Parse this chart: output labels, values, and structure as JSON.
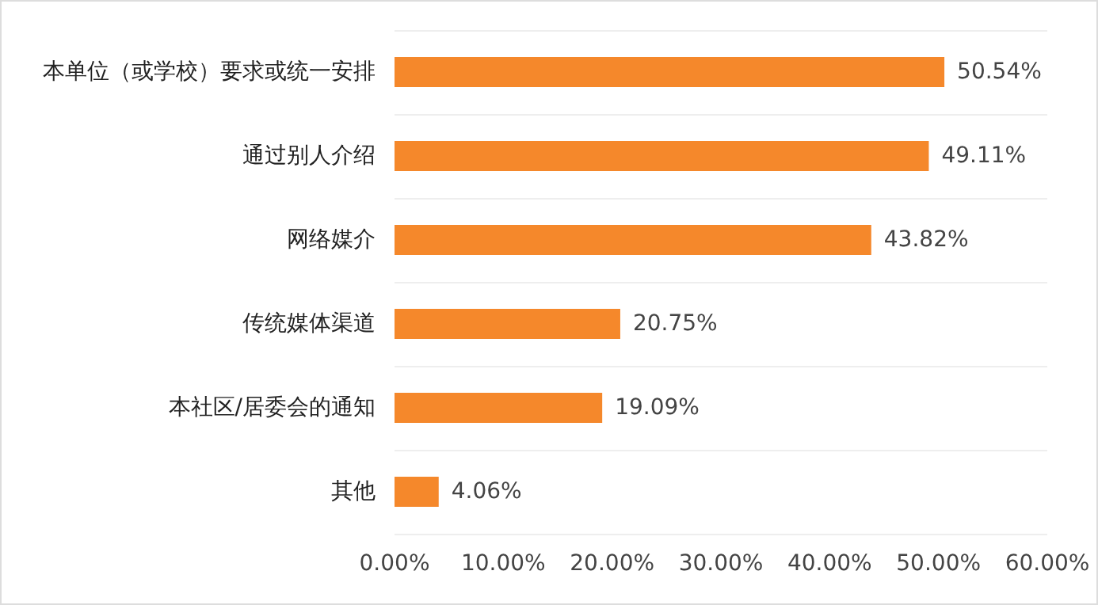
{
  "chart_data": {
    "type": "bar",
    "orientation": "horizontal",
    "categories": [
      "本单位（或学校）要求或统一安排",
      "通过别人介绍",
      "网络媒介",
      "传统媒体渠道",
      "本社区/居委会的通知",
      "其他"
    ],
    "values": [
      50.54,
      49.11,
      43.82,
      20.75,
      19.09,
      4.06
    ],
    "value_labels": [
      "50.54%",
      "49.11%",
      "43.82%",
      "20.75%",
      "19.09%",
      "4.06%"
    ],
    "color": "#f5882b",
    "xlim": [
      0,
      60
    ],
    "xticks": [
      {
        "value": 0,
        "label": "0.00%"
      },
      {
        "value": 10,
        "label": "10.00%"
      },
      {
        "value": 20,
        "label": "20.00%"
      },
      {
        "value": 30,
        "label": "30.00%"
      },
      {
        "value": 40,
        "label": "40.00%"
      },
      {
        "value": 50,
        "label": "50.00%"
      },
      {
        "value": 60,
        "label": "60.00%"
      }
    ],
    "grid": "y"
  }
}
